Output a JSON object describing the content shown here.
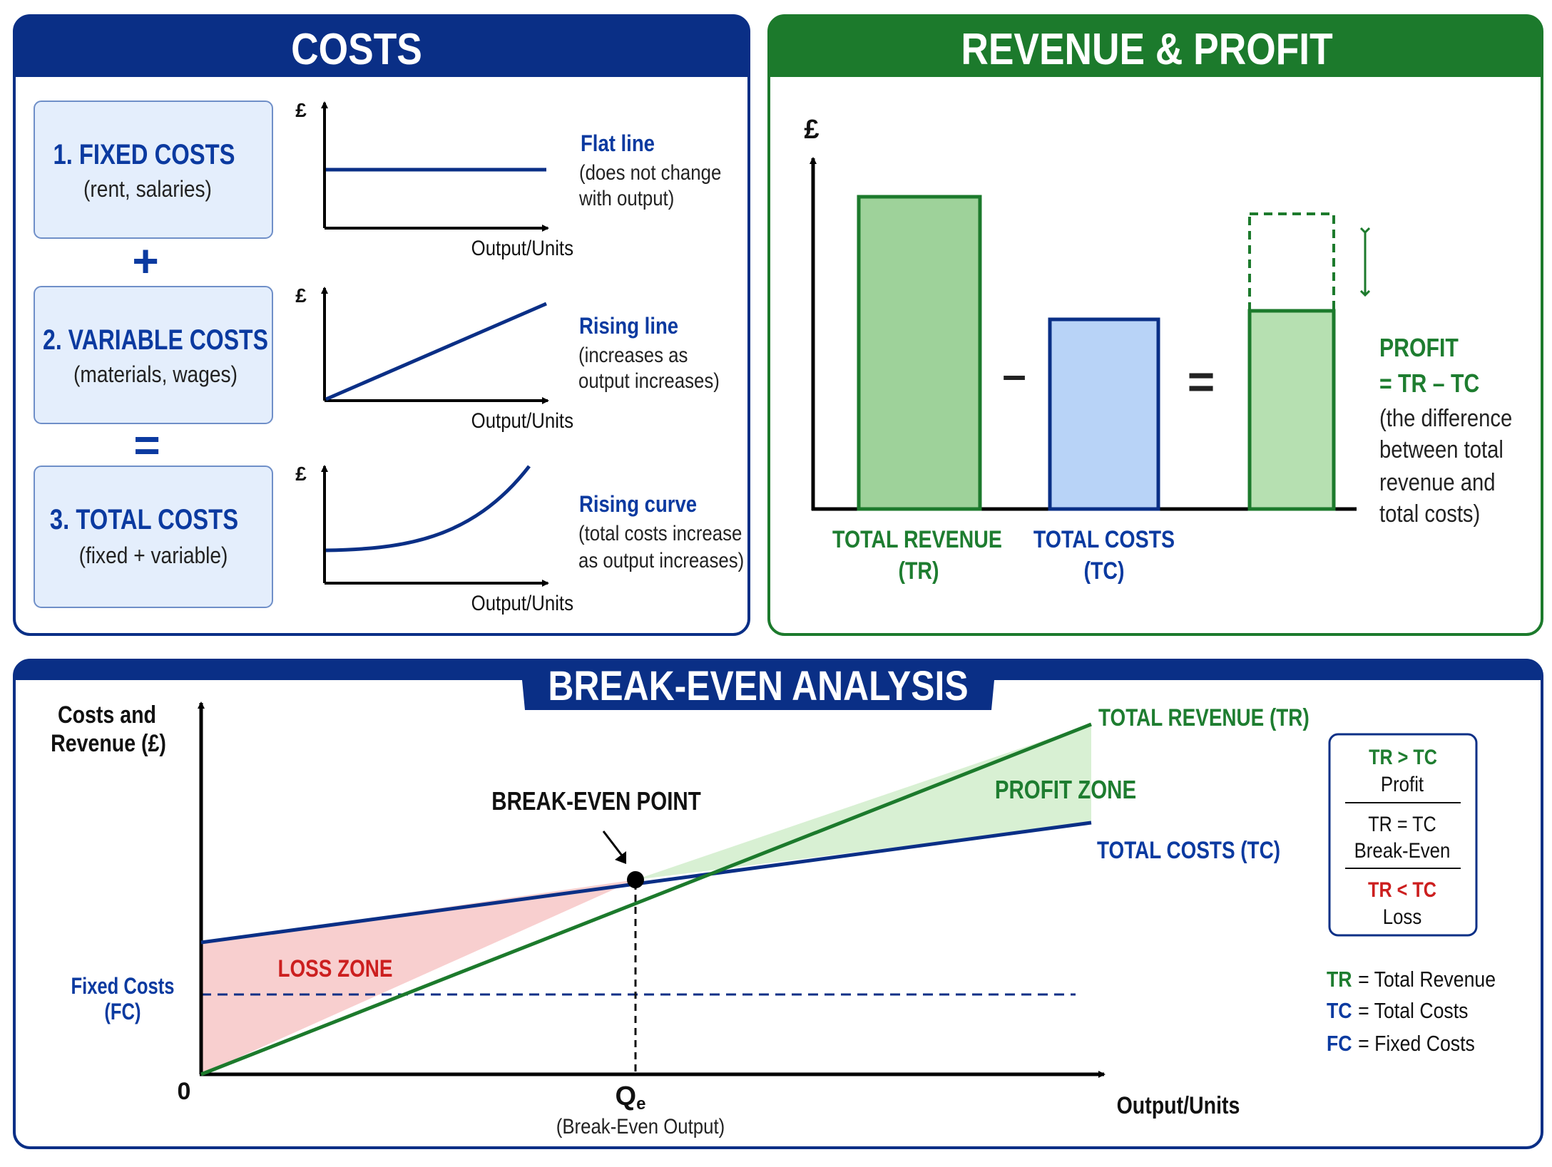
{
  "colors": {
    "blue": "#0a2f86",
    "blue_text": "#0b3aa0",
    "green": "#1c7a2c",
    "green_text": "#1e7d30",
    "red": "#cc1f1f",
    "box_fill": "#e4eefc",
    "tr_bar": "#9ed29a",
    "tc_bar": "#b8d3f7",
    "profit_bar": "#b6e0b1",
    "loss_fill": "#f8cfcf",
    "profit_fill": "#d8f0d3"
  },
  "costs": {
    "title": "COSTS",
    "fixed": {
      "heading": "1. FIXED COSTS",
      "sub": "(rent, salaries)",
      "axis_y": "£",
      "axis_x": "Output/Units",
      "desc_title": "Flat line",
      "desc_1": "(does not change",
      "desc_2": "with output)"
    },
    "plus": "+",
    "variable": {
      "heading": "2. VARIABLE COSTS",
      "sub": "(materials, wages)",
      "axis_y": "£",
      "axis_x": "Output/Units",
      "desc_title": "Rising line",
      "desc_1": "(increases as",
      "desc_2": "output increases)"
    },
    "equals": "=",
    "total": {
      "heading": "3. TOTAL COSTS",
      "sub": "(fixed + variable)",
      "axis_y": "£",
      "axis_x": "Output/Units",
      "desc_title": "Rising curve",
      "desc_1": "(total costs increase",
      "desc_2": "as output increases)"
    }
  },
  "revenue_profit": {
    "title": "REVENUE & PROFIT",
    "axis_y": "£",
    "minus": "–",
    "equals": "=",
    "tr_label_1": "TOTAL REVENUE",
    "tr_label_2": "(TR)",
    "tc_label_1": "TOTAL COSTS",
    "tc_label_2": "(TC)",
    "profit_title": "PROFIT",
    "profit_formula": "= TR – TC",
    "profit_desc": [
      "(the difference",
      "between total",
      "revenue and",
      "total costs)"
    ]
  },
  "break_even": {
    "title": "BREAK-EVEN ANALYSIS",
    "y_label_1": "Costs and",
    "y_label_2": "Revenue (£)",
    "x_label": "Output/Units",
    "origin": "0",
    "fc_label_1": "Fixed Costs",
    "fc_label_2": "(FC)",
    "tr_line_label": "TOTAL REVENUE (TR)",
    "tc_line_label": "TOTAL COSTS (TC)",
    "profit_zone": "PROFIT ZONE",
    "loss_zone": "LOSS ZONE",
    "point_label": "BREAK-EVEN POINT",
    "qe_main": "Q",
    "qe_sub": "e",
    "qe_desc": "(Break-Even Output)",
    "legend_box": [
      {
        "rel": "TR > TC",
        "meaning": "Profit"
      },
      {
        "rel": "TR = TC",
        "meaning": "Break-Even"
      },
      {
        "rel": "TR < TC",
        "meaning": "Loss"
      }
    ],
    "abbrev": [
      {
        "abbr": "TR",
        "text": "= Total Revenue"
      },
      {
        "abbr": "TC",
        "text": "= Total Costs"
      },
      {
        "abbr": "FC",
        "text": "= Fixed Costs"
      }
    ]
  }
}
